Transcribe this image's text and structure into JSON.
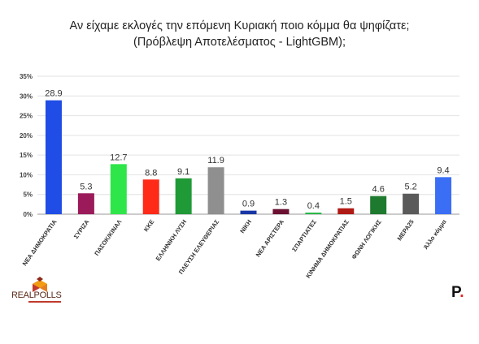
{
  "header": {
    "title_line1": "Αν είχαμε εκλογές την επόμενη Κυριακή ποιο κόμμα θα ψηφίζατε;",
    "title_line2": "(Πρόβλεψη Αποτελέσματος - LightGBM);"
  },
  "branding": {
    "logo_text": "REALPOLLS",
    "brand_mark": "P",
    "brand_dot": "."
  },
  "chart_data": {
    "type": "bar",
    "title": "Αν είχαμε εκλογές την επόμενη Κυριακή ποιο κόμμα θα ψηφίζατε; (Πρόβλεψη Αποτελέσματος - LightGBM);",
    "categories": [
      "ΝΕΑ ΔΗΜΟΚΡΑΤΙΑ",
      "ΣΥΡΙΖΑ",
      "ΠΑΣΟΚ/ΚΙΝΑΛ",
      "ΚΚΕ",
      "ΕΛΛΗΝΙΚΗ ΛΥΣΗ",
      "ΠΛΕΥΣΗ ΕΛΕΥΘΕΡΙΑΣ",
      "ΝΙΚΗ",
      "ΝΕΑ ΑΡΙΣΤΕΡΑ",
      "ΣΠΑΡΤΙΑΤΕΣ",
      "ΚΙΝΗΜΑ ΔΗΜΟΚΡΑΤΙΑΣ",
      "ΦΩΝΗ ΛΟΓΙΚΗΣ",
      "ΜΕΡΑ25",
      "Άλλο κόμμα"
    ],
    "values": [
      28.9,
      5.3,
      12.7,
      8.8,
      9.1,
      11.9,
      0.9,
      1.3,
      0.4,
      1.5,
      4.6,
      5.2,
      9.4
    ],
    "value_labels": [
      "28.9",
      "5.3",
      "12.7",
      "8.8",
      "9.1",
      "11.9",
      "0.9",
      "1.3",
      "0.4",
      "1.5",
      "4.6",
      "5.2",
      "9.4"
    ],
    "colors": [
      "#1f4de6",
      "#9b1b5a",
      "#2ee64a",
      "#ff2a17",
      "#1f9a36",
      "#8f8f8f",
      "#1836a6",
      "#6b1030",
      "#25b844",
      "#b01a14",
      "#1e7a2e",
      "#5a5a5a",
      "#3a6ef5"
    ],
    "yticks": [
      "0%",
      "5%",
      "10%",
      "15%",
      "20%",
      "25%",
      "30%",
      "35%"
    ],
    "ylim": [
      0,
      35
    ],
    "xlabel": "",
    "ylabel": "",
    "grid": true,
    "legend": "none"
  }
}
